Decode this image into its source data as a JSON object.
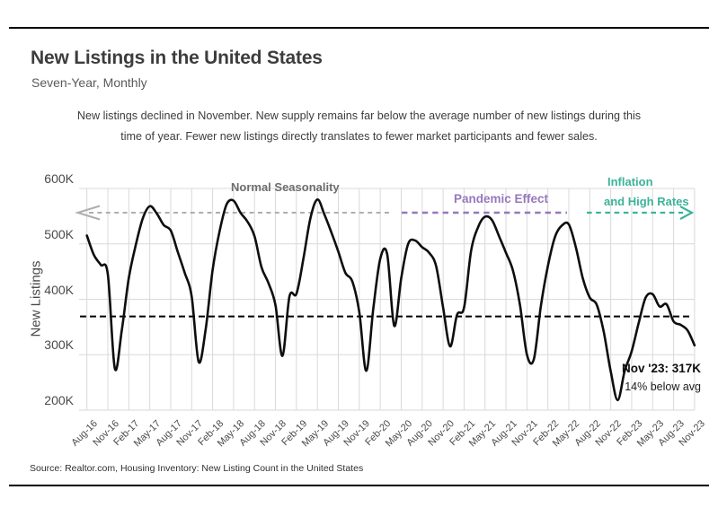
{
  "colors": {
    "accent_purple": "#9678bc",
    "accent_teal": "#3bb39a",
    "label_gray": "#6e6e6e",
    "arrow_gray": "#aeaeae",
    "series_black": "#0e0e0e",
    "grid_gray": "#d9d9d9",
    "average_black": "#000000"
  },
  "header": {
    "title": "New Listings in the United States",
    "subtitle": "Seven-Year, Monthly"
  },
  "note": {
    "line1": "New listings declined in November. New supply remains far below the average number of new listings during this",
    "line2": "time of year. Fewer new listings directly translates to fewer market participants and fewer sales."
  },
  "chart_data": {
    "type": "line",
    "ylabel": "New Listings",
    "y_unit": "thousands of listings",
    "ylim_thousands": [
      200,
      600
    ],
    "y_tick_labels": [
      "600K",
      "500K",
      "400K",
      "300K",
      "200K"
    ],
    "x_interval": "monthly",
    "x_start": "Aug-16",
    "x_end": "Nov-23",
    "x_tick_labels": [
      "Aug-16",
      "Nov-16",
      "Feb-17",
      "May-17",
      "Aug-17",
      "Nov-17",
      "Feb-18",
      "May-18",
      "Aug-18",
      "Nov-18",
      "Feb-19",
      "May-19",
      "Aug-19",
      "Nov-19",
      "Feb-20",
      "May-20",
      "Aug-20",
      "Nov-20",
      "Feb-21",
      "May-21",
      "Aug-21",
      "Nov-21",
      "Feb-22",
      "May-22",
      "Aug-22",
      "Nov-22",
      "Feb-23",
      "May-23",
      "Aug-23",
      "Nov-23"
    ],
    "grid": true,
    "legend": "none",
    "series": [
      {
        "name": "New listings (thousands, monthly Aug-16 to Nov-23)",
        "values": [
          515,
          480,
          462,
          445,
          275,
          345,
          438,
          498,
          546,
          568,
          555,
          534,
          524,
          486,
          448,
          405,
          287,
          345,
          453,
          523,
          571,
          578,
          556,
          540,
          514,
          458,
          429,
          389,
          298,
          405,
          410,
          473,
          546,
          580,
          553,
          521,
          486,
          448,
          432,
          377,
          271,
          383,
          473,
          481,
          352,
          438,
          500,
          506,
          494,
          484,
          460,
          385,
          315,
          372,
          385,
          487,
          530,
          549,
          543,
          514,
          484,
          452,
          390,
          300,
          292,
          388,
          460,
          512,
          533,
          535,
          494,
          438,
          403,
          390,
          341,
          270,
          218,
          271,
          306,
          357,
          403,
          409,
          387,
          391,
          360,
          354,
          344,
          317
        ]
      }
    ],
    "average_line_thousands": 369,
    "annotations": {
      "normal_seasonality": "Normal Seasonality",
      "pandemic_effect": "Pandemic Effect",
      "inflation_line1": "Inflation",
      "inflation_line2": "and High Rates",
      "endpoint_line1": "Nov '23: 317K",
      "endpoint_line2": "14% below avg"
    }
  },
  "source": "Source:  Realtor.com, Housing Inventory: New Listing Count in the United States"
}
